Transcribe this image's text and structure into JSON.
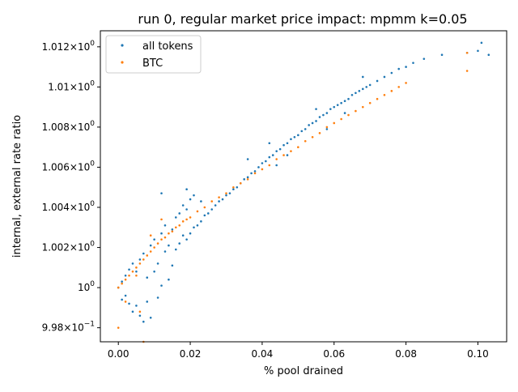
{
  "chart_data": {
    "type": "scatter",
    "title": "run 0, regular market price impact: mpmm k=0.05",
    "xlabel": "% pool drained",
    "ylabel": "internal, external rate ratio",
    "xlim": [
      -0.005,
      0.108
    ],
    "ylim": [
      0.9973,
      1.0128
    ],
    "x_ticks": [
      {
        "value": 0.0,
        "label": "0.00"
      },
      {
        "value": 0.02,
        "label": "0.02"
      },
      {
        "value": 0.04,
        "label": "0.04"
      },
      {
        "value": 0.06,
        "label": "0.06"
      },
      {
        "value": 0.08,
        "label": "0.08"
      },
      {
        "value": 0.1,
        "label": "0.10"
      }
    ],
    "y_ticks": [
      {
        "value": 0.998,
        "mantissa": "9.98",
        "exponent": "−1"
      },
      {
        "value": 1.0,
        "mantissa": "",
        "exponent": "0"
      },
      {
        "value": 1.002,
        "mantissa": "1.002",
        "exponent": "0"
      },
      {
        "value": 1.004,
        "mantissa": "1.004",
        "exponent": "0"
      },
      {
        "value": 1.006,
        "mantissa": "1.006",
        "exponent": "0"
      },
      {
        "value": 1.008,
        "mantissa": "1.008",
        "exponent": "0"
      },
      {
        "value": 1.01,
        "mantissa": "1.01",
        "exponent": "0"
      },
      {
        "value": 1.012,
        "mantissa": "1.012",
        "exponent": "0"
      }
    ],
    "times_symbol": "×",
    "base": "10",
    "legend_position": "top-left",
    "series": [
      {
        "name": "all tokens",
        "color": "#1f77b4",
        "marker": "dot",
        "points": [
          [
            0.0,
            1.0
          ],
          [
            0.001,
            0.9994
          ],
          [
            0.001,
            1.0003
          ],
          [
            0.002,
            1.0006
          ],
          [
            0.002,
            0.9996
          ],
          [
            0.003,
            1.0009
          ],
          [
            0.003,
            0.9992
          ],
          [
            0.004,
            0.9988
          ],
          [
            0.004,
            1.0012
          ],
          [
            0.005,
            1.0008
          ],
          [
            0.005,
            0.9991
          ],
          [
            0.006,
            1.0014
          ],
          [
            0.006,
            0.9986
          ],
          [
            0.007,
            0.9983
          ],
          [
            0.007,
            1.0017
          ],
          [
            0.008,
            1.0005
          ],
          [
            0.008,
            0.9993
          ],
          [
            0.009,
            1.0021
          ],
          [
            0.009,
            0.9985
          ],
          [
            0.01,
            1.0008
          ],
          [
            0.01,
            1.0024
          ],
          [
            0.011,
            1.0012
          ],
          [
            0.011,
            0.9995
          ],
          [
            0.012,
            1.0027
          ],
          [
            0.012,
            1.0001
          ],
          [
            0.013,
            1.0018
          ],
          [
            0.013,
            1.0031
          ],
          [
            0.014,
            1.0021
          ],
          [
            0.014,
            1.0004
          ],
          [
            0.015,
            1.0029
          ],
          [
            0.015,
            1.0011
          ],
          [
            0.016,
            1.0035
          ],
          [
            0.016,
            1.0019
          ],
          [
            0.017,
            1.0037
          ],
          [
            0.017,
            1.0022
          ],
          [
            0.018,
            1.0026
          ],
          [
            0.018,
            1.0041
          ],
          [
            0.019,
            1.0024
          ],
          [
            0.019,
            1.0039
          ],
          [
            0.02,
            1.0027
          ],
          [
            0.02,
            1.0044
          ],
          [
            0.021,
            1.003
          ],
          [
            0.021,
            1.0046
          ],
          [
            0.022,
            1.0031
          ],
          [
            0.023,
            1.0033
          ],
          [
            0.023,
            1.0043
          ],
          [
            0.024,
            1.0036
          ],
          [
            0.025,
            1.0037
          ],
          [
            0.026,
            1.0039
          ],
          [
            0.027,
            1.0041
          ],
          [
            0.028,
            1.0043
          ],
          [
            0.029,
            1.0044
          ],
          [
            0.03,
            1.0046
          ],
          [
            0.031,
            1.0047
          ],
          [
            0.032,
            1.0049
          ],
          [
            0.033,
            1.005
          ],
          [
            0.034,
            1.0052
          ],
          [
            0.035,
            1.0054
          ],
          [
            0.036,
            1.0055
          ],
          [
            0.037,
            1.0057
          ],
          [
            0.038,
            1.0058
          ],
          [
            0.039,
            1.006
          ],
          [
            0.04,
            1.0062
          ],
          [
            0.041,
            1.0063
          ],
          [
            0.042,
            1.0065
          ],
          [
            0.043,
            1.0066
          ],
          [
            0.044,
            1.0068
          ],
          [
            0.045,
            1.0069
          ],
          [
            0.046,
            1.0071
          ],
          [
            0.047,
            1.0072
          ],
          [
            0.048,
            1.0074
          ],
          [
            0.049,
            1.0075
          ],
          [
            0.05,
            1.0076
          ],
          [
            0.051,
            1.0078
          ],
          [
            0.052,
            1.0079
          ],
          [
            0.053,
            1.0081
          ],
          [
            0.054,
            1.0082
          ],
          [
            0.055,
            1.0083
          ],
          [
            0.056,
            1.0085
          ],
          [
            0.057,
            1.0086
          ],
          [
            0.058,
            1.0087
          ],
          [
            0.059,
            1.0089
          ],
          [
            0.06,
            1.009
          ],
          [
            0.061,
            1.0091
          ],
          [
            0.062,
            1.0092
          ],
          [
            0.063,
            1.0093
          ],
          [
            0.064,
            1.0094
          ],
          [
            0.065,
            1.0096
          ],
          [
            0.066,
            1.0097
          ],
          [
            0.067,
            1.0098
          ],
          [
            0.068,
            1.0099
          ],
          [
            0.069,
            1.01
          ],
          [
            0.07,
            1.0101
          ],
          [
            0.072,
            1.0103
          ],
          [
            0.074,
            1.0105
          ],
          [
            0.076,
            1.0107
          ],
          [
            0.078,
            1.0109
          ],
          [
            0.08,
            1.011
          ],
          [
            0.082,
            1.0112
          ],
          [
            0.085,
            1.0114
          ],
          [
            0.09,
            1.0116
          ],
          [
            0.097,
            1.0117
          ],
          [
            0.1,
            1.0118
          ],
          [
            0.101,
            1.0122
          ],
          [
            0.103,
            1.0116
          ],
          [
            0.042,
            1.0072
          ],
          [
            0.044,
            1.0061
          ],
          [
            0.055,
            1.0089
          ],
          [
            0.058,
            1.0079
          ],
          [
            0.068,
            1.0105
          ],
          [
            0.063,
            1.0087
          ],
          [
            0.047,
            1.0066
          ],
          [
            0.036,
            1.0064
          ],
          [
            0.012,
            1.0047
          ],
          [
            0.019,
            1.0049
          ]
        ]
      },
      {
        "name": "BTC",
        "color": "#ff7f0e",
        "marker": "dot",
        "points": [
          [
            0.0,
            1.0
          ],
          [
            0.001,
            1.0002
          ],
          [
            0.002,
            1.0004
          ],
          [
            0.003,
            1.0006
          ],
          [
            0.004,
            1.0008
          ],
          [
            0.005,
            1.001
          ],
          [
            0.006,
            1.0012
          ],
          [
            0.007,
            1.0014
          ],
          [
            0.008,
            1.0016
          ],
          [
            0.009,
            1.0018
          ],
          [
            0.01,
            1.002
          ],
          [
            0.011,
            1.0022
          ],
          [
            0.012,
            1.0024
          ],
          [
            0.013,
            1.0025
          ],
          [
            0.014,
            1.0027
          ],
          [
            0.015,
            1.0028
          ],
          [
            0.016,
            1.003
          ],
          [
            0.017,
            1.0031
          ],
          [
            0.018,
            1.0033
          ],
          [
            0.019,
            1.0034
          ],
          [
            0.02,
            1.0035
          ],
          [
            0.022,
            1.0038
          ],
          [
            0.024,
            1.004
          ],
          [
            0.026,
            1.0043
          ],
          [
            0.028,
            1.0045
          ],
          [
            0.03,
            1.0047
          ],
          [
            0.032,
            1.005
          ],
          [
            0.034,
            1.0052
          ],
          [
            0.036,
            1.0054
          ],
          [
            0.038,
            1.0057
          ],
          [
            0.04,
            1.0059
          ],
          [
            0.042,
            1.0061
          ],
          [
            0.044,
            1.0064
          ],
          [
            0.046,
            1.0066
          ],
          [
            0.048,
            1.0068
          ],
          [
            0.05,
            1.007
          ],
          [
            0.052,
            1.0073
          ],
          [
            0.054,
            1.0075
          ],
          [
            0.056,
            1.0077
          ],
          [
            0.058,
            1.008
          ],
          [
            0.06,
            1.0082
          ],
          [
            0.062,
            1.0084
          ],
          [
            0.064,
            1.0086
          ],
          [
            0.066,
            1.0088
          ],
          [
            0.068,
            1.009
          ],
          [
            0.07,
            1.0092
          ],
          [
            0.072,
            1.0094
          ],
          [
            0.074,
            1.0096
          ],
          [
            0.076,
            1.0098
          ],
          [
            0.078,
            1.01
          ],
          [
            0.08,
            1.0102
          ],
          [
            0.097,
            1.0117
          ],
          [
            0.097,
            1.0108
          ],
          [
            0.0,
            0.998
          ],
          [
            0.007,
            0.9973
          ],
          [
            0.002,
            0.9993
          ],
          [
            0.005,
            1.0006
          ],
          [
            0.009,
            1.0026
          ],
          [
            0.012,
            1.0034
          ],
          [
            0.006,
            0.9988
          ]
        ]
      }
    ]
  }
}
